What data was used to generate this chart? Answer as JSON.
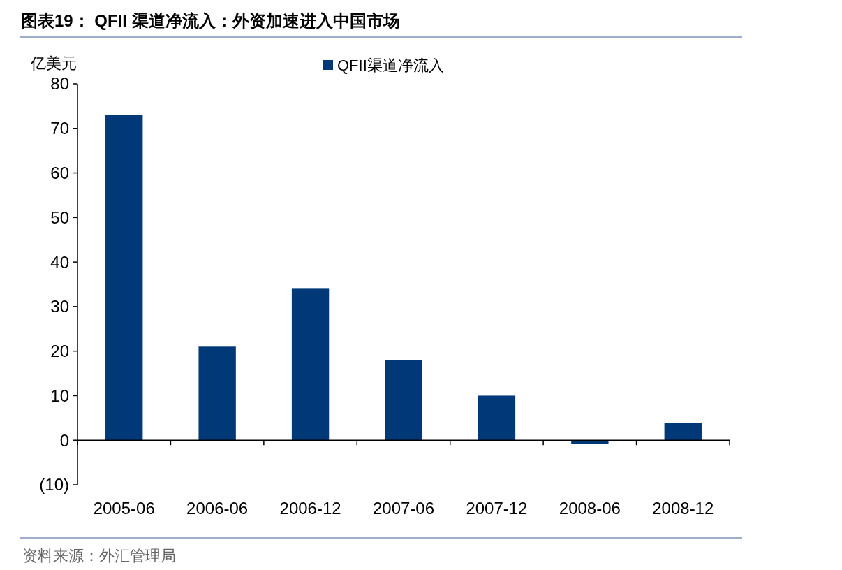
{
  "chart_data": {
    "type": "bar",
    "title": "图表19： QFII 渠道净流入：外资加速进入中国市场",
    "ylabel": "亿美元",
    "categories": [
      "2005-06",
      "2006-06",
      "2006-12",
      "2007-06",
      "2007-12",
      "2008-06",
      "2008-12"
    ],
    "series": [
      {
        "name": "QFII渠道净流入",
        "color": "#003878",
        "values": [
          73,
          21,
          34,
          18,
          10,
          -0.8,
          3.8
        ]
      }
    ],
    "ylim": [
      -10,
      80
    ],
    "yticks": [
      {
        "value": -10,
        "label": "(10)"
      },
      0,
      10,
      20,
      30,
      40,
      50,
      60,
      70,
      80
    ],
    "legend": "top",
    "annotations": [
      "资料来源：外汇管理局"
    ]
  }
}
